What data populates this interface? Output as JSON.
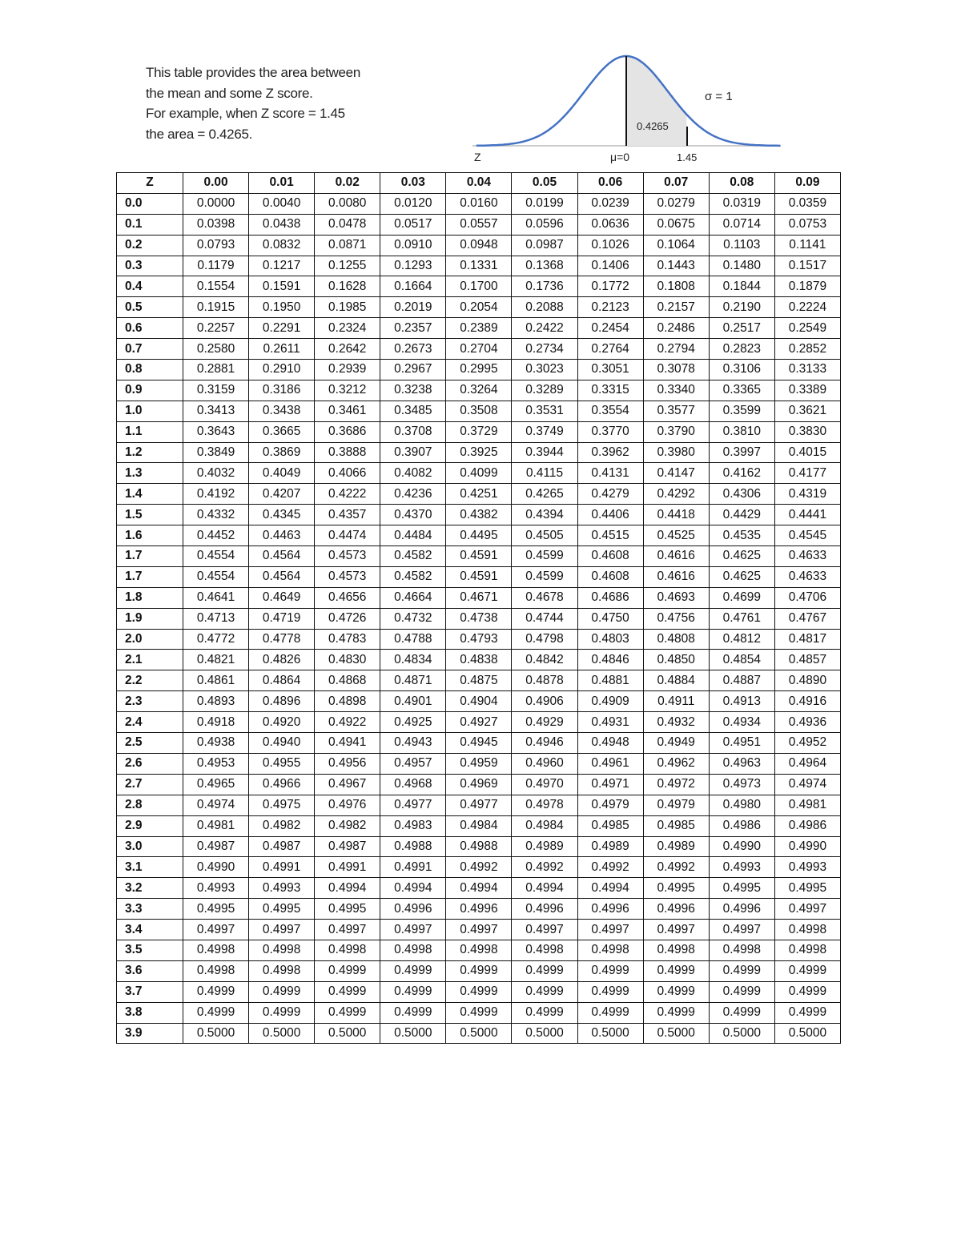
{
  "intro": {
    "lines": [
      "This table provides the area between",
      "the mean and some Z score.",
      "For example, when Z score = 1.45",
      "the area = 0.4265."
    ]
  },
  "figure": {
    "area_label": "0.4265",
    "sigma_label": "σ = 1",
    "z_label": "Z",
    "mu_label": "μ=0",
    "z_value_label": "1.45",
    "curve_color": "#4472c4",
    "shade_color": "#e4e4e4"
  },
  "table": {
    "headers": [
      "Z",
      "0.00",
      "0.01",
      "0.02",
      "0.03",
      "0.04",
      "0.05",
      "0.06",
      "0.07",
      "0.08",
      "0.09"
    ],
    "rows": [
      [
        "0.0",
        "0.0000",
        "0.0040",
        "0.0080",
        "0.0120",
        "0.0160",
        "0.0199",
        "0.0239",
        "0.0279",
        "0.0319",
        "0.0359"
      ],
      [
        "0.1",
        "0.0398",
        "0.0438",
        "0.0478",
        "0.0517",
        "0.0557",
        "0.0596",
        "0.0636",
        "0.0675",
        "0.0714",
        "0.0753"
      ],
      [
        "0.2",
        "0.0793",
        "0.0832",
        "0.0871",
        "0.0910",
        "0.0948",
        "0.0987",
        "0.1026",
        "0.1064",
        "0.1103",
        "0.1141"
      ],
      [
        "0.3",
        "0.1179",
        "0.1217",
        "0.1255",
        "0.1293",
        "0.1331",
        "0.1368",
        "0.1406",
        "0.1443",
        "0.1480",
        "0.1517"
      ],
      [
        "0.4",
        "0.1554",
        "0.1591",
        "0.1628",
        "0.1664",
        "0.1700",
        "0.1736",
        "0.1772",
        "0.1808",
        "0.1844",
        "0.1879"
      ],
      [
        "0.5",
        "0.1915",
        "0.1950",
        "0.1985",
        "0.2019",
        "0.2054",
        "0.2088",
        "0.2123",
        "0.2157",
        "0.2190",
        "0.2224"
      ],
      [
        "0.6",
        "0.2257",
        "0.2291",
        "0.2324",
        "0.2357",
        "0.2389",
        "0.2422",
        "0.2454",
        "0.2486",
        "0.2517",
        "0.2549"
      ],
      [
        "0.7",
        "0.2580",
        "0.2611",
        "0.2642",
        "0.2673",
        "0.2704",
        "0.2734",
        "0.2764",
        "0.2794",
        "0.2823",
        "0.2852"
      ],
      [
        "0.8",
        "0.2881",
        "0.2910",
        "0.2939",
        "0.2967",
        "0.2995",
        "0.3023",
        "0.3051",
        "0.3078",
        "0.3106",
        "0.3133"
      ],
      [
        "0.9",
        "0.3159",
        "0.3186",
        "0.3212",
        "0.3238",
        "0.3264",
        "0.3289",
        "0.3315",
        "0.3340",
        "0.3365",
        "0.3389"
      ],
      [
        "1.0",
        "0.3413",
        "0.3438",
        "0.3461",
        "0.3485",
        "0.3508",
        "0.3531",
        "0.3554",
        "0.3577",
        "0.3599",
        "0.3621"
      ],
      [
        "1.1",
        "0.3643",
        "0.3665",
        "0.3686",
        "0.3708",
        "0.3729",
        "0.3749",
        "0.3770",
        "0.3790",
        "0.3810",
        "0.3830"
      ],
      [
        "1.2",
        "0.3849",
        "0.3869",
        "0.3888",
        "0.3907",
        "0.3925",
        "0.3944",
        "0.3962",
        "0.3980",
        "0.3997",
        "0.4015"
      ],
      [
        "1.3",
        "0.4032",
        "0.4049",
        "0.4066",
        "0.4082",
        "0.4099",
        "0.4115",
        "0.4131",
        "0.4147",
        "0.4162",
        "0.4177"
      ],
      [
        "1.4",
        "0.4192",
        "0.4207",
        "0.4222",
        "0.4236",
        "0.4251",
        "0.4265",
        "0.4279",
        "0.4292",
        "0.4306",
        "0.4319"
      ],
      [
        "1.5",
        "0.4332",
        "0.4345",
        "0.4357",
        "0.4370",
        "0.4382",
        "0.4394",
        "0.4406",
        "0.4418",
        "0.4429",
        "0.4441"
      ],
      [
        "1.6",
        "0.4452",
        "0.4463",
        "0.4474",
        "0.4484",
        "0.4495",
        "0.4505",
        "0.4515",
        "0.4525",
        "0.4535",
        "0.4545"
      ],
      [
        "1.7",
        "0.4554",
        "0.4564",
        "0.4573",
        "0.4582",
        "0.4591",
        "0.4599",
        "0.4608",
        "0.4616",
        "0.4625",
        "0.4633"
      ],
      [
        "1.7",
        "0.4554",
        "0.4564",
        "0.4573",
        "0.4582",
        "0.4591",
        "0.4599",
        "0.4608",
        "0.4616",
        "0.4625",
        "0.4633"
      ],
      [
        "1.8",
        "0.4641",
        "0.4649",
        "0.4656",
        "0.4664",
        "0.4671",
        "0.4678",
        "0.4686",
        "0.4693",
        "0.4699",
        "0.4706"
      ],
      [
        "1.9",
        "0.4713",
        "0.4719",
        "0.4726",
        "0.4732",
        "0.4738",
        "0.4744",
        "0.4750",
        "0.4756",
        "0.4761",
        "0.4767"
      ],
      [
        "2.0",
        "0.4772",
        "0.4778",
        "0.4783",
        "0.4788",
        "0.4793",
        "0.4798",
        "0.4803",
        "0.4808",
        "0.4812",
        "0.4817"
      ],
      [
        "2.1",
        "0.4821",
        "0.4826",
        "0.4830",
        "0.4834",
        "0.4838",
        "0.4842",
        "0.4846",
        "0.4850",
        "0.4854",
        "0.4857"
      ],
      [
        "2.2",
        "0.4861",
        "0.4864",
        "0.4868",
        "0.4871",
        "0.4875",
        "0.4878",
        "0.4881",
        "0.4884",
        "0.4887",
        "0.4890"
      ],
      [
        "2.3",
        "0.4893",
        "0.4896",
        "0.4898",
        "0.4901",
        "0.4904",
        "0.4906",
        "0.4909",
        "0.4911",
        "0.4913",
        "0.4916"
      ],
      [
        "2.4",
        "0.4918",
        "0.4920",
        "0.4922",
        "0.4925",
        "0.4927",
        "0.4929",
        "0.4931",
        "0.4932",
        "0.4934",
        "0.4936"
      ],
      [
        "2.5",
        "0.4938",
        "0.4940",
        "0.4941",
        "0.4943",
        "0.4945",
        "0.4946",
        "0.4948",
        "0.4949",
        "0.4951",
        "0.4952"
      ],
      [
        "2.6",
        "0.4953",
        "0.4955",
        "0.4956",
        "0.4957",
        "0.4959",
        "0.4960",
        "0.4961",
        "0.4962",
        "0.4963",
        "0.4964"
      ],
      [
        "2.7",
        "0.4965",
        "0.4966",
        "0.4967",
        "0.4968",
        "0.4969",
        "0.4970",
        "0.4971",
        "0.4972",
        "0.4973",
        "0.4974"
      ],
      [
        "2.8",
        "0.4974",
        "0.4975",
        "0.4976",
        "0.4977",
        "0.4977",
        "0.4978",
        "0.4979",
        "0.4979",
        "0.4980",
        "0.4981"
      ],
      [
        "2.9",
        "0.4981",
        "0.4982",
        "0.4982",
        "0.4983",
        "0.4984",
        "0.4984",
        "0.4985",
        "0.4985",
        "0.4986",
        "0.4986"
      ],
      [
        "3.0",
        "0.4987",
        "0.4987",
        "0.4987",
        "0.4988",
        "0.4988",
        "0.4989",
        "0.4989",
        "0.4989",
        "0.4990",
        "0.4990"
      ],
      [
        "3.1",
        "0.4990",
        "0.4991",
        "0.4991",
        "0.4991",
        "0.4992",
        "0.4992",
        "0.4992",
        "0.4992",
        "0.4993",
        "0.4993"
      ],
      [
        "3.2",
        "0.4993",
        "0.4993",
        "0.4994",
        "0.4994",
        "0.4994",
        "0.4994",
        "0.4994",
        "0.4995",
        "0.4995",
        "0.4995"
      ],
      [
        "3.3",
        "0.4995",
        "0.4995",
        "0.4995",
        "0.4996",
        "0.4996",
        "0.4996",
        "0.4996",
        "0.4996",
        "0.4996",
        "0.4997"
      ],
      [
        "3.4",
        "0.4997",
        "0.4997",
        "0.4997",
        "0.4997",
        "0.4997",
        "0.4997",
        "0.4997",
        "0.4997",
        "0.4997",
        "0.4998"
      ],
      [
        "3.5",
        "0.4998",
        "0.4998",
        "0.4998",
        "0.4998",
        "0.4998",
        "0.4998",
        "0.4998",
        "0.4998",
        "0.4998",
        "0.4998"
      ],
      [
        "3.6",
        "0.4998",
        "0.4998",
        "0.4999",
        "0.4999",
        "0.4999",
        "0.4999",
        "0.4999",
        "0.4999",
        "0.4999",
        "0.4999"
      ],
      [
        "3.7",
        "0.4999",
        "0.4999",
        "0.4999",
        "0.4999",
        "0.4999",
        "0.4999",
        "0.4999",
        "0.4999",
        "0.4999",
        "0.4999"
      ],
      [
        "3.8",
        "0.4999",
        "0.4999",
        "0.4999",
        "0.4999",
        "0.4999",
        "0.4999",
        "0.4999",
        "0.4999",
        "0.4999",
        "0.4999"
      ],
      [
        "3.9",
        "0.5000",
        "0.5000",
        "0.5000",
        "0.5000",
        "0.5000",
        "0.5000",
        "0.5000",
        "0.5000",
        "0.5000",
        "0.5000"
      ]
    ]
  }
}
